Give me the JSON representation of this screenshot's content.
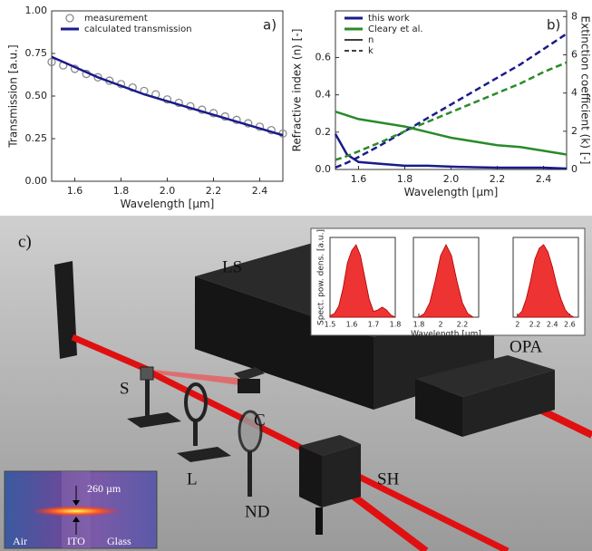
{
  "chart_data": [
    {
      "type": "line",
      "annotation": "a)",
      "xlabel": "Wavelength [µm]",
      "ylabel": "Transmission [a.u.]",
      "xlim": [
        1.5,
        2.5
      ],
      "xticks": [
        1.6,
        1.8,
        {
          "value": 2,
          "label": "2.0"
        },
        2.2,
        2.4
      ],
      "ylim": [
        0,
        1
      ],
      "yticks": [
        {
          "value": 0,
          "label": "0.00"
        },
        0.25,
        {
          "value": 0.5,
          "label": "0.50"
        },
        0.75,
        {
          "value": 1,
          "label": "1.00"
        }
      ],
      "legend": "upper left",
      "series": [
        {
          "name": "measurement",
          "color": "#8c8c8c",
          "marker": "circle",
          "x": [
            1.5,
            1.55,
            1.6,
            1.65,
            1.7,
            1.75,
            1.8,
            1.85,
            1.9,
            1.95,
            2.0,
            2.05,
            2.1,
            2.15,
            2.2,
            2.25,
            2.3,
            2.35,
            2.4,
            2.45,
            2.5
          ],
          "values": [
            0.7,
            0.68,
            0.66,
            0.63,
            0.61,
            0.59,
            0.57,
            0.55,
            0.53,
            0.51,
            0.48,
            0.46,
            0.44,
            0.42,
            0.4,
            0.38,
            0.36,
            0.34,
            0.32,
            0.3,
            0.28
          ]
        },
        {
          "name": "calculated transmission",
          "color": "#1a1a8c",
          "x": [
            1.5,
            1.6,
            1.7,
            1.8,
            1.9,
            2.0,
            2.1,
            2.2,
            2.3,
            2.4,
            2.5
          ],
          "values": [
            0.73,
            0.67,
            0.61,
            0.56,
            0.51,
            0.47,
            0.43,
            0.39,
            0.35,
            0.31,
            0.27
          ]
        }
      ]
    },
    {
      "type": "line",
      "annotation": "b)",
      "xlabel": "Wavelength [µm]",
      "ylabel": "Refractive index (n) [-]",
      "y2label": "Extinction coefficient (k) [-]",
      "xlim": [
        1.5,
        2.5
      ],
      "xticks": [
        1.6,
        1.8,
        {
          "value": 2,
          "label": "2.0"
        },
        2.2,
        2.4
      ],
      "ylim": [
        0,
        0.85
      ],
      "yticks": [
        {
          "value": 0,
          "label": "0.0"
        },
        0.2,
        0.4,
        0.6
      ],
      "y2lim": [
        0,
        8.3
      ],
      "y2ticks": [
        0,
        2,
        4,
        6,
        8
      ],
      "legend": "upper left",
      "x": [
        1.5,
        1.55,
        1.6,
        1.7,
        1.8,
        1.9,
        2.0,
        2.1,
        2.2,
        2.3,
        2.4,
        2.5
      ],
      "series": [
        {
          "name": "this work",
          "quantity": "n",
          "color": "#1a1a8c",
          "linestyle": "solid",
          "values": [
            0.19,
            0.08,
            0.04,
            0.03,
            0.02,
            0.02,
            0.015,
            0.012,
            0.01,
            0.01,
            0.01,
            0.005
          ]
        },
        {
          "name": "Cleary et al.",
          "quantity": "n",
          "color": "#2a8a2a",
          "linestyle": "solid",
          "values": [
            0.31,
            0.29,
            0.27,
            0.25,
            0.23,
            0.2,
            0.17,
            0.15,
            0.13,
            0.12,
            0.1,
            0.08
          ]
        },
        {
          "name": "this work",
          "quantity": "k",
          "color": "#1a1a8c",
          "linestyle": "dashed",
          "axis": "y2",
          "values": [
            0.1,
            0.35,
            0.65,
            1.3,
            2.0,
            2.7,
            3.4,
            4.1,
            4.8,
            5.5,
            6.3,
            7.1
          ]
        },
        {
          "name": "Cleary et al.",
          "quantity": "k",
          "color": "#2a8a2a",
          "linestyle": "dashed",
          "axis": "y2",
          "values": [
            0.5,
            0.7,
            0.95,
            1.45,
            2.0,
            2.5,
            3.0,
            3.5,
            4.0,
            4.5,
            5.1,
            5.6
          ]
        }
      ]
    },
    {
      "type": "area",
      "ylabel": "Spect. pow. dens. [a.u.]",
      "color": "#ee3333",
      "xlim": [
        1.5,
        1.8
      ],
      "xticks": [
        1.5,
        1.6,
        1.7,
        1.8
      ],
      "ylim": [
        0,
        1.1
      ],
      "x": [
        1.5,
        1.52,
        1.54,
        1.56,
        1.58,
        1.6,
        1.62,
        1.64,
        1.66,
        1.68,
        1.7,
        1.72,
        1.74,
        1.76,
        1.78,
        1.8
      ],
      "values": [
        0.02,
        0.05,
        0.15,
        0.4,
        0.75,
        0.92,
        1.0,
        0.85,
        0.55,
        0.25,
        0.08,
        0.1,
        0.14,
        0.1,
        0.03,
        0
      ]
    },
    {
      "type": "area",
      "xlabel": "Wavelength [µm]",
      "color": "#ee3333",
      "xlim": [
        1.75,
        2.35
      ],
      "xticks": [
        1.8,
        2,
        2.2
      ],
      "ylim": [
        0,
        1.1
      ],
      "x": [
        1.8,
        1.85,
        1.9,
        1.95,
        2.0,
        2.05,
        2.1,
        2.15,
        2.2,
        2.25,
        2.3
      ],
      "values": [
        0,
        0.05,
        0.2,
        0.5,
        0.85,
        1.0,
        0.85,
        0.5,
        0.2,
        0.05,
        0
      ]
    },
    {
      "type": "area",
      "color": "#ee3333",
      "xlim": [
        1.95,
        2.7
      ],
      "xticks": [
        2,
        2.2,
        2.4,
        2.6
      ],
      "ylim": [
        0,
        1.1
      ],
      "x": [
        2.0,
        2.05,
        2.1,
        2.15,
        2.2,
        2.25,
        2.3,
        2.35,
        2.4,
        2.45,
        2.5,
        2.55,
        2.6,
        2.65
      ],
      "values": [
        0.02,
        0.08,
        0.25,
        0.5,
        0.8,
        0.95,
        1.0,
        0.9,
        0.7,
        0.45,
        0.25,
        0.1,
        0.03,
        0
      ]
    }
  ],
  "scene": {
    "panel_label": "c)",
    "labels": {
      "source": "LS",
      "opa": "OPA",
      "sample": "S",
      "camera": "C",
      "lens": "L",
      "filter": "ND",
      "harmonic": "SH"
    },
    "inset": {
      "size": "260 µm",
      "layers": [
        "Air",
        "ITO",
        "Glass"
      ]
    }
  }
}
